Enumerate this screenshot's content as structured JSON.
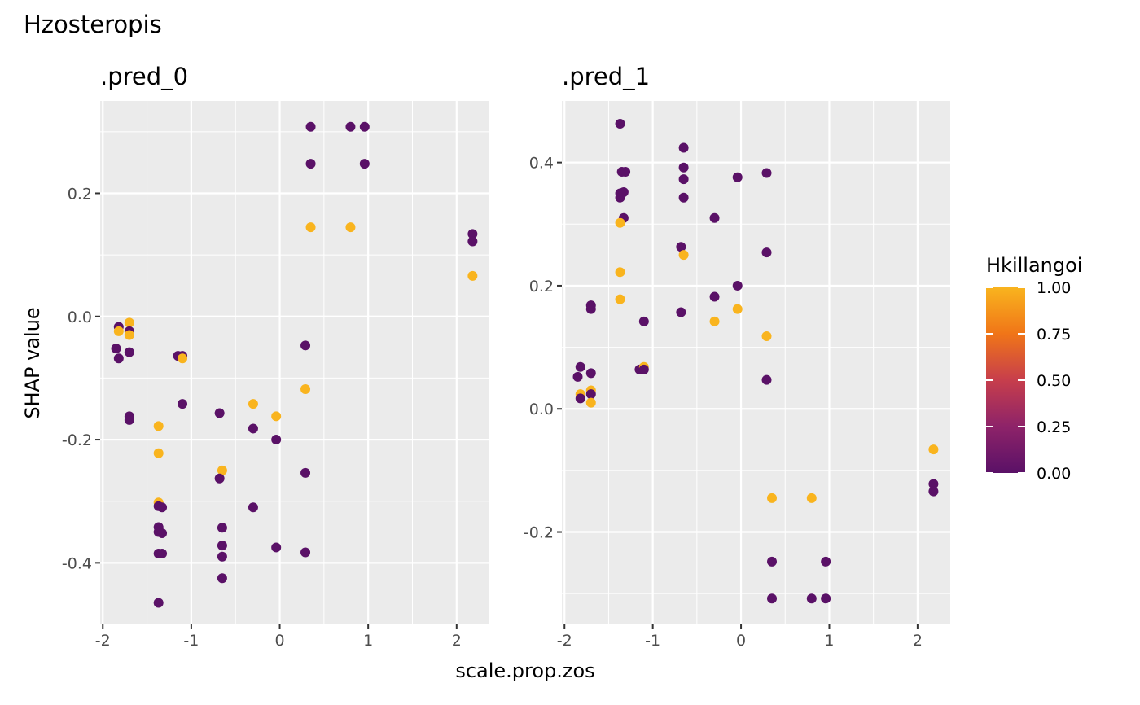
{
  "title": "Hzosteropis",
  "colors": {
    "panel_bg": "#EBEBEB",
    "grid": "#FFFFFF",
    "low": "#5A1167",
    "high": "#F9B41E",
    "tick": "#4D4D4D"
  },
  "chart_data": {
    "type": "scatter",
    "xlabel": "scale.prop.zos",
    "ylabel": "SHAP value",
    "legend": {
      "title": "Hkillangoi",
      "placement": "right",
      "ticks": [
        "1.00",
        "0.75",
        "0.50",
        "0.25",
        "0.00"
      ],
      "tick_values": [
        1.0,
        0.75,
        0.5,
        0.25,
        0.0
      ],
      "range": [
        0,
        1
      ],
      "colormap": "inferno"
    },
    "panels": [
      {
        "name": ".pred_0",
        "xlim": [
          -2.03,
          2.37
        ],
        "ylim": [
          -0.5,
          0.35
        ],
        "xticks": [
          -2,
          -1,
          0,
          1,
          2
        ],
        "xtick_labels": [
          "-2",
          "-1",
          "0",
          "1",
          "2"
        ],
        "yticks": [
          0.2,
          0.0,
          -0.2,
          -0.4
        ],
        "ytick_labels": [
          "0.2",
          "0.0",
          "-0.2",
          "-0.4"
        ],
        "points": [
          {
            "x": 0.35,
            "y": 0.308,
            "c": 0
          },
          {
            "x": 0.8,
            "y": 0.308,
            "c": 0
          },
          {
            "x": 0.96,
            "y": 0.308,
            "c": 0
          },
          {
            "x": 0.35,
            "y": 0.248,
            "c": 0
          },
          {
            "x": 0.96,
            "y": 0.248,
            "c": 0
          },
          {
            "x": 0.35,
            "y": 0.145,
            "c": 1
          },
          {
            "x": 0.8,
            "y": 0.145,
            "c": 1
          },
          {
            "x": 2.18,
            "y": 0.134,
            "c": 0
          },
          {
            "x": 2.18,
            "y": 0.122,
            "c": 0
          },
          {
            "x": 2.18,
            "y": 0.066,
            "c": 1
          },
          {
            "x": -1.82,
            "y": -0.017,
            "c": 0
          },
          {
            "x": -1.82,
            "y": -0.024,
            "c": 1
          },
          {
            "x": -1.7,
            "y": -0.01,
            "c": 1
          },
          {
            "x": -1.7,
            "y": -0.024,
            "c": 0
          },
          {
            "x": -1.7,
            "y": -0.03,
            "c": 1
          },
          {
            "x": -1.85,
            "y": -0.052,
            "c": 0
          },
          {
            "x": -1.82,
            "y": -0.068,
            "c": 0
          },
          {
            "x": -1.7,
            "y": -0.058,
            "c": 0
          },
          {
            "x": -1.15,
            "y": -0.064,
            "c": 0
          },
          {
            "x": -1.1,
            "y": -0.064,
            "c": 0
          },
          {
            "x": -1.1,
            "y": -0.068,
            "c": 1
          },
          {
            "x": 0.29,
            "y": -0.047,
            "c": 0
          },
          {
            "x": -1.7,
            "y": -0.162,
            "c": 0
          },
          {
            "x": -1.7,
            "y": -0.168,
            "c": 0
          },
          {
            "x": -1.1,
            "y": -0.142,
            "c": 0
          },
          {
            "x": -1.37,
            "y": -0.178,
            "c": 1
          },
          {
            "x": -1.37,
            "y": -0.222,
            "c": 1
          },
          {
            "x": -0.68,
            "y": -0.157,
            "c": 0
          },
          {
            "x": -0.3,
            "y": -0.142,
            "c": 1
          },
          {
            "x": -0.3,
            "y": -0.182,
            "c": 0
          },
          {
            "x": -0.04,
            "y": -0.162,
            "c": 1
          },
          {
            "x": -0.04,
            "y": -0.2,
            "c": 0
          },
          {
            "x": 0.29,
            "y": -0.118,
            "c": 1
          },
          {
            "x": -0.65,
            "y": -0.25,
            "c": 1
          },
          {
            "x": -0.68,
            "y": -0.263,
            "c": 0
          },
          {
            "x": 0.29,
            "y": -0.254,
            "c": 0
          },
          {
            "x": -1.37,
            "y": -0.302,
            "c": 1
          },
          {
            "x": -1.37,
            "y": -0.308,
            "c": 0
          },
          {
            "x": -1.33,
            "y": -0.31,
            "c": 0
          },
          {
            "x": -0.3,
            "y": -0.31,
            "c": 0
          },
          {
            "x": -1.37,
            "y": -0.342,
            "c": 0
          },
          {
            "x": -1.37,
            "y": -0.35,
            "c": 0
          },
          {
            "x": -1.33,
            "y": -0.352,
            "c": 0
          },
          {
            "x": -0.65,
            "y": -0.343,
            "c": 0
          },
          {
            "x": -0.65,
            "y": -0.372,
            "c": 0
          },
          {
            "x": -0.04,
            "y": -0.375,
            "c": 0
          },
          {
            "x": -1.37,
            "y": -0.385,
            "c": 0
          },
          {
            "x": -1.33,
            "y": -0.385,
            "c": 0
          },
          {
            "x": -0.65,
            "y": -0.39,
            "c": 0
          },
          {
            "x": 0.29,
            "y": -0.383,
            "c": 0
          },
          {
            "x": -0.65,
            "y": -0.425,
            "c": 0
          },
          {
            "x": -1.37,
            "y": -0.465,
            "c": 0
          }
        ]
      },
      {
        "name": ".pred_1",
        "xlim": [
          -2.03,
          2.37
        ],
        "ylim": [
          -0.35,
          0.5
        ],
        "xticks": [
          -2,
          -1,
          0,
          1,
          2
        ],
        "xtick_labels": [
          "-2",
          "-1",
          "0",
          "1",
          "2"
        ],
        "yticks": [
          0.4,
          0.2,
          0.0,
          -0.2
        ],
        "ytick_labels": [
          "0.4",
          "0.2",
          "0.0",
          "-0.2"
        ],
        "points": [
          {
            "x": -1.37,
            "y": 0.463,
            "c": 0
          },
          {
            "x": -0.65,
            "y": 0.424,
            "c": 0
          },
          {
            "x": -0.65,
            "y": 0.392,
            "c": 0
          },
          {
            "x": -0.65,
            "y": 0.373,
            "c": 0
          },
          {
            "x": -0.65,
            "y": 0.343,
            "c": 0
          },
          {
            "x": -1.35,
            "y": 0.385,
            "c": 0
          },
          {
            "x": -1.31,
            "y": 0.385,
            "c": 0
          },
          {
            "x": -1.37,
            "y": 0.35,
            "c": 0
          },
          {
            "x": -1.33,
            "y": 0.352,
            "c": 0
          },
          {
            "x": -1.37,
            "y": 0.343,
            "c": 0
          },
          {
            "x": -1.33,
            "y": 0.31,
            "c": 0
          },
          {
            "x": -1.37,
            "y": 0.302,
            "c": 1
          },
          {
            "x": -0.04,
            "y": 0.376,
            "c": 0
          },
          {
            "x": 0.29,
            "y": 0.383,
            "c": 0
          },
          {
            "x": -0.3,
            "y": 0.31,
            "c": 0
          },
          {
            "x": -0.68,
            "y": 0.263,
            "c": 0
          },
          {
            "x": -0.65,
            "y": 0.25,
            "c": 1
          },
          {
            "x": 0.29,
            "y": 0.254,
            "c": 0
          },
          {
            "x": -1.37,
            "y": 0.222,
            "c": 1
          },
          {
            "x": -0.04,
            "y": 0.2,
            "c": 0
          },
          {
            "x": -0.3,
            "y": 0.182,
            "c": 0
          },
          {
            "x": -1.37,
            "y": 0.178,
            "c": 1
          },
          {
            "x": -1.7,
            "y": 0.168,
            "c": 0
          },
          {
            "x": -1.7,
            "y": 0.162,
            "c": 0
          },
          {
            "x": -0.04,
            "y": 0.162,
            "c": 1
          },
          {
            "x": -0.68,
            "y": 0.157,
            "c": 0
          },
          {
            "x": -1.1,
            "y": 0.142,
            "c": 0
          },
          {
            "x": -0.3,
            "y": 0.142,
            "c": 1
          },
          {
            "x": 0.29,
            "y": 0.118,
            "c": 1
          },
          {
            "x": -1.15,
            "y": 0.064,
            "c": 0
          },
          {
            "x": -1.1,
            "y": 0.068,
            "c": 1
          },
          {
            "x": -1.1,
            "y": 0.064,
            "c": 0
          },
          {
            "x": -1.82,
            "y": 0.068,
            "c": 0
          },
          {
            "x": -1.7,
            "y": 0.058,
            "c": 0
          },
          {
            "x": -1.85,
            "y": 0.052,
            "c": 0
          },
          {
            "x": 0.29,
            "y": 0.047,
            "c": 0
          },
          {
            "x": -1.7,
            "y": 0.03,
            "c": 1
          },
          {
            "x": -1.7,
            "y": 0.024,
            "c": 0
          },
          {
            "x": -1.82,
            "y": 0.024,
            "c": 1
          },
          {
            "x": -1.82,
            "y": 0.017,
            "c": 0
          },
          {
            "x": -1.7,
            "y": 0.01,
            "c": 1
          },
          {
            "x": 2.18,
            "y": -0.066,
            "c": 1
          },
          {
            "x": 2.18,
            "y": -0.122,
            "c": 0
          },
          {
            "x": 2.18,
            "y": -0.134,
            "c": 0
          },
          {
            "x": 0.35,
            "y": -0.145,
            "c": 1
          },
          {
            "x": 0.8,
            "y": -0.145,
            "c": 1
          },
          {
            "x": 0.35,
            "y": -0.248,
            "c": 0
          },
          {
            "x": 0.96,
            "y": -0.248,
            "c": 0
          },
          {
            "x": 0.35,
            "y": -0.308,
            "c": 0
          },
          {
            "x": 0.8,
            "y": -0.308,
            "c": 0
          },
          {
            "x": 0.96,
            "y": -0.308,
            "c": 0
          }
        ]
      }
    ]
  }
}
